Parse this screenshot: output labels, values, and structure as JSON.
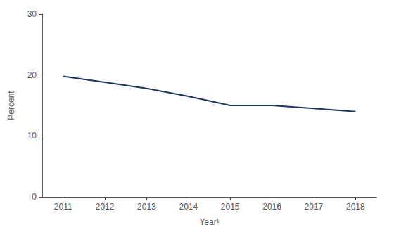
{
  "chart_data": {
    "type": "line",
    "x": [
      2011,
      2012,
      2013,
      2014,
      2015,
      2016,
      2017,
      2018
    ],
    "values": [
      19.8,
      18.8,
      17.8,
      16.5,
      15.0,
      15.0,
      14.5,
      14.0
    ],
    "color": "#1a3560",
    "xlabel": "Year¹",
    "ylabel": "Percent",
    "xlim": [
      2010.5,
      2018.5
    ],
    "ylim": [
      0,
      30
    ],
    "xticks": [
      2011,
      2012,
      2013,
      2014,
      2015,
      2016,
      2017,
      2018
    ],
    "yticks": [
      0,
      10,
      20,
      30
    ],
    "grid": false
  }
}
